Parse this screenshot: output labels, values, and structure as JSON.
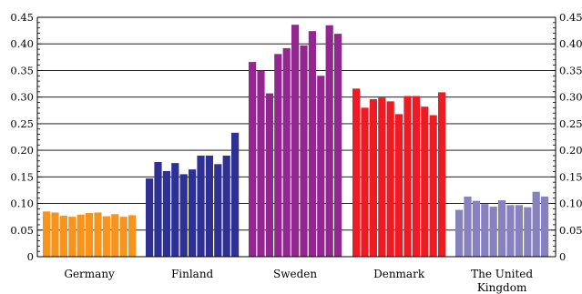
{
  "chart_data": {
    "type": "bar",
    "title": "",
    "xlabel": "",
    "ylabel": "",
    "ylim": [
      0,
      0.45
    ],
    "yticks": [
      "0",
      "0.05",
      "0.10",
      "0.15",
      "0.20",
      "0.25",
      "0.30",
      "0.35",
      "0.40",
      "0.45"
    ],
    "grid": true,
    "y_axis_sides": "left and right",
    "groups": [
      {
        "category_lines": [
          "Germany"
        ],
        "color": "#F7941D",
        "values": [
          0.085,
          0.083,
          0.077,
          0.075,
          0.079,
          0.082,
          0.083,
          0.076,
          0.08,
          0.075,
          0.078
        ]
      },
      {
        "category_lines": [
          "Finland"
        ],
        "color": "#2E3192",
        "values": [
          0.147,
          0.178,
          0.161,
          0.176,
          0.155,
          0.164,
          0.19,
          0.19,
          0.174,
          0.19,
          0.233
        ]
      },
      {
        "category_lines": [
          "Sweden"
        ],
        "color": "#92278F",
        "values": [
          0.366,
          0.35,
          0.307,
          0.381,
          0.392,
          0.436,
          0.397,
          0.424,
          0.34,
          0.435,
          0.419
        ]
      },
      {
        "category_lines": [
          "Denmark"
        ],
        "color": "#ED1C24",
        "values": [
          0.316,
          0.28,
          0.296,
          0.299,
          0.292,
          0.268,
          0.302,
          0.302,
          0.282,
          0.266,
          0.309
        ]
      },
      {
        "category_lines": [
          "The United",
          "Kingdom"
        ],
        "color": "#8781BD",
        "values": [
          0.088,
          0.113,
          0.105,
          0.099,
          0.094,
          0.106,
          0.097,
          0.097,
          0.093,
          0.122,
          0.113
        ]
      }
    ]
  }
}
